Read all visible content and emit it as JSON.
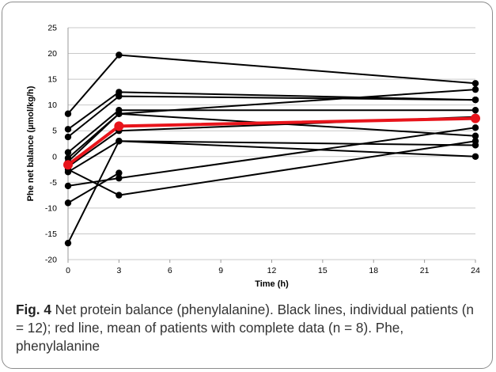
{
  "chart_data": {
    "type": "line",
    "xlabel": "Time (h)",
    "ylabel": "Phe net balance (µmol/kg/h)",
    "xlim": [
      0,
      24
    ],
    "ylim": [
      -20,
      25
    ],
    "x_ticks": [
      0,
      3,
      6,
      9,
      12,
      15,
      18,
      21,
      24
    ],
    "y_ticks": [
      -20,
      -15,
      -10,
      -5,
      0,
      5,
      10,
      15,
      20,
      25
    ],
    "grid": "horizontal",
    "series": [
      {
        "group": "individual",
        "color": "#000000",
        "points": [
          [
            0,
            8.3
          ],
          [
            3,
            19.7
          ],
          [
            24,
            14.2
          ]
        ]
      },
      {
        "group": "individual",
        "color": "#000000",
        "points": [
          [
            0,
            5.3
          ],
          [
            3,
            12.5
          ],
          [
            24,
            11.0
          ]
        ]
      },
      {
        "group": "individual",
        "color": "#000000",
        "points": [
          [
            0,
            3.8
          ],
          [
            3,
            11.7
          ],
          [
            24,
            11.0
          ]
        ]
      },
      {
        "group": "individual",
        "color": "#000000",
        "points": [
          [
            0,
            0.8
          ],
          [
            3,
            9.0
          ],
          [
            24,
            9.0
          ]
        ]
      },
      {
        "group": "individual",
        "color": "#000000",
        "points": [
          [
            0,
            -0.3
          ],
          [
            3,
            8.3
          ],
          [
            24,
            13.0
          ]
        ]
      },
      {
        "group": "individual",
        "color": "#000000",
        "points": [
          [
            0,
            -1.0
          ],
          [
            3,
            8.3
          ],
          [
            24,
            4.0
          ]
        ]
      },
      {
        "group": "individual",
        "color": "#000000",
        "points": [
          [
            0,
            -2.0
          ],
          [
            3,
            5.0
          ],
          [
            24,
            7.7
          ]
        ]
      },
      {
        "group": "individual",
        "color": "#000000",
        "points": [
          [
            0,
            -2.5
          ],
          [
            3,
            -7.5
          ],
          [
            24,
            3.0
          ]
        ]
      },
      {
        "group": "individual",
        "color": "#000000",
        "points": [
          [
            0,
            -3.0
          ],
          [
            3,
            3.0
          ],
          [
            24,
            0.0
          ]
        ]
      },
      {
        "group": "individual",
        "color": "#000000",
        "points": [
          [
            0,
            -5.7
          ],
          [
            3,
            -4.2
          ],
          [
            24,
            5.6
          ]
        ]
      },
      {
        "group": "individual",
        "color": "#000000",
        "points": [
          [
            0,
            -9.0
          ],
          [
            3,
            -3.2
          ]
        ]
      },
      {
        "group": "individual",
        "color": "#000000",
        "points": [
          [
            0,
            -16.8
          ],
          [
            3,
            3.0
          ],
          [
            24,
            2.2
          ]
        ]
      },
      {
        "group": "mean",
        "color": "#e8141b",
        "points": [
          [
            0,
            -1.6
          ],
          [
            3,
            5.9
          ],
          [
            24,
            7.4
          ]
        ]
      }
    ]
  },
  "caption": {
    "label": "Fig. 4",
    "text": " Net protein balance (phenylalanine). Black lines, individual patients (n = 12); red line, mean of patients with complete data (n = 8). Phe, phenylalanine"
  }
}
